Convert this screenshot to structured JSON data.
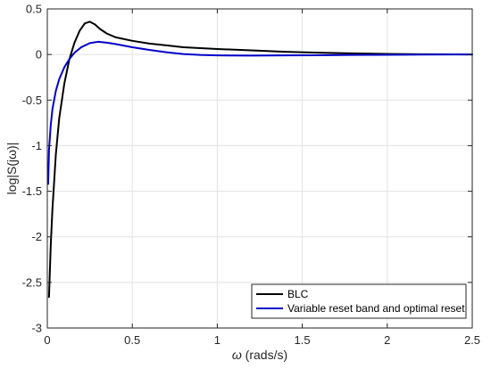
{
  "chart_data": {
    "type": "line",
    "xlabel_symbol": "ω",
    "xlabel_unit": "(rads/s)",
    "ylabel": "log|S(jω)|",
    "xlim": [
      0,
      2.5
    ],
    "ylim": [
      -3,
      0.5
    ],
    "xticks": [
      0,
      0.5,
      1,
      1.5,
      2,
      2.5
    ],
    "xtick_labels": [
      "0",
      "0.5",
      "1",
      "1.5",
      "2",
      "2.5"
    ],
    "yticks": [
      -3,
      -2.5,
      -2,
      -1.5,
      -1,
      -0.5,
      0,
      0.5
    ],
    "ytick_labels": [
      "-3",
      "-2.5",
      "-2",
      "-1.5",
      "-1",
      "-0.5",
      "0",
      "0.5"
    ],
    "grid": true,
    "legend_position": "bottom-right",
    "series": [
      {
        "name": "BLC",
        "color": "#000000",
        "x": [
          0.01,
          0.02,
          0.03,
          0.05,
          0.07,
          0.1,
          0.13,
          0.16,
          0.19,
          0.22,
          0.25,
          0.28,
          0.31,
          0.35,
          0.4,
          0.5,
          0.6,
          0.7,
          0.8,
          1.0,
          1.2,
          1.4,
          1.6,
          1.8,
          2.0,
          2.2,
          2.5
        ],
        "y": [
          -2.66,
          -2.1,
          -1.7,
          -1.1,
          -0.7,
          -0.32,
          -0.05,
          0.13,
          0.26,
          0.34,
          0.36,
          0.33,
          0.28,
          0.23,
          0.19,
          0.15,
          0.12,
          0.1,
          0.08,
          0.06,
          0.045,
          0.03,
          0.02,
          0.012,
          0.006,
          0.003,
          0.0
        ]
      },
      {
        "name": "Variable reset band and optimal reset",
        "color": "#0000cc",
        "x": [
          0.005,
          0.01,
          0.02,
          0.03,
          0.05,
          0.07,
          0.1,
          0.13,
          0.16,
          0.2,
          0.25,
          0.3,
          0.35,
          0.4,
          0.5,
          0.6,
          0.7,
          0.8,
          0.9,
          1.0,
          1.2,
          1.4,
          1.6,
          1.8,
          2.0,
          2.2,
          2.5
        ],
        "y": [
          -1.42,
          -1.05,
          -0.78,
          -0.6,
          -0.4,
          -0.27,
          -0.14,
          -0.05,
          0.02,
          0.08,
          0.125,
          0.14,
          0.13,
          0.115,
          0.08,
          0.05,
          0.025,
          0.005,
          -0.005,
          -0.01,
          -0.012,
          -0.01,
          -0.008,
          -0.005,
          -0.003,
          -0.001,
          0.0
        ]
      }
    ]
  }
}
